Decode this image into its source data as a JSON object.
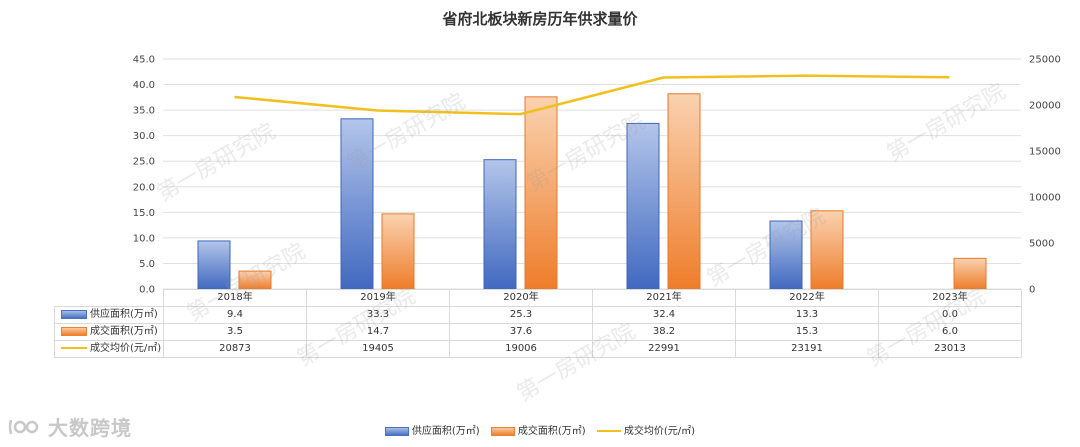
{
  "title": "省府北板块新房历年供求量价",
  "chart_data": {
    "type": "bar",
    "categories": [
      "2018年",
      "2019年",
      "2020年",
      "2021年",
      "2022年",
      "2023年"
    ],
    "series": [
      {
        "name": "供应面积(万㎡)",
        "type": "bar",
        "axis": "left",
        "color": "#4a72c4",
        "values": [
          9.4,
          33.3,
          25.3,
          32.4,
          13.3,
          0.0
        ],
        "display": [
          "9.4",
          "33.3",
          "25.3",
          "32.4",
          "13.3",
          "0.0"
        ]
      },
      {
        "name": "成交面积(万㎡)",
        "type": "bar",
        "axis": "left",
        "color": "#ee8030",
        "values": [
          3.5,
          14.7,
          37.6,
          38.2,
          15.3,
          6.0
        ],
        "display": [
          "3.5",
          "14.7",
          "37.6",
          "38.2",
          "15.3",
          "6.0"
        ]
      },
      {
        "name": "成交均价(元/㎡)",
        "type": "line",
        "axis": "right",
        "color": "#f2c01e",
        "values": [
          20873,
          19405,
          19006,
          22991,
          23191,
          23013
        ],
        "display": [
          "20873",
          "19405",
          "19006",
          "22991",
          "23191",
          "23013"
        ]
      }
    ],
    "y_left": {
      "min": 0,
      "max": 45,
      "step": 5,
      "ticks": [
        "0.0",
        "5.0",
        "10.0",
        "15.0",
        "20.0",
        "25.0",
        "30.0",
        "35.0",
        "40.0",
        "45.0"
      ]
    },
    "y_right": {
      "min": 0,
      "max": 25000,
      "step": 5000,
      "ticks": [
        "0",
        "5000",
        "10000",
        "15000",
        "20000",
        "25000"
      ]
    },
    "grid": true,
    "legend": "bottom"
  },
  "watermark": "第一房研究院",
  "brand": "大数跨境"
}
